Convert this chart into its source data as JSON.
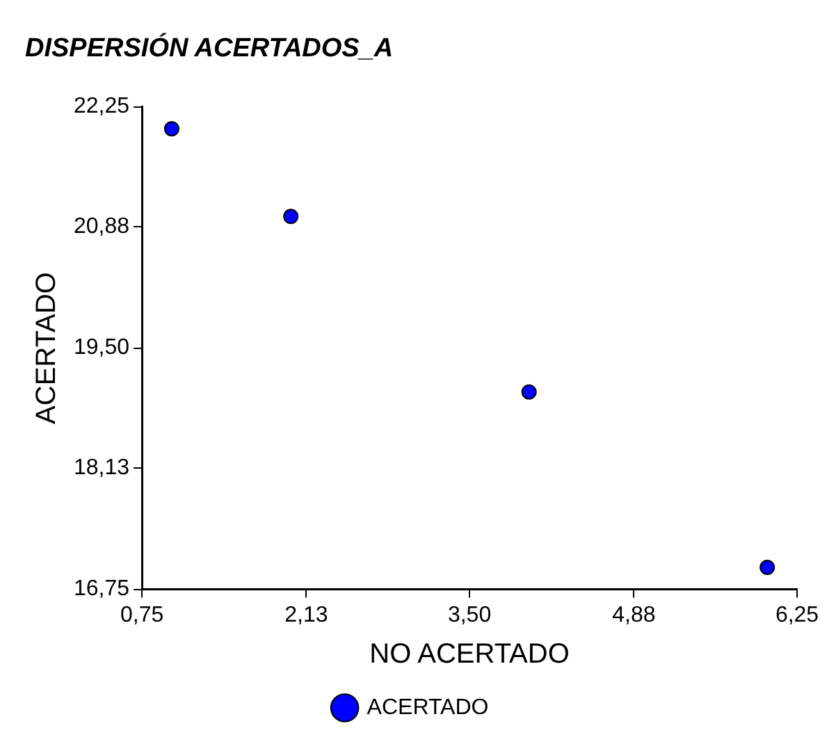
{
  "chart_data": {
    "type": "scatter",
    "title": "DISPERSIÓN ACERTADOS_A",
    "xlabel": "NO ACERTADO",
    "ylabel": "ACERTADO",
    "x": [
      1,
      2,
      4,
      6
    ],
    "series": [
      {
        "name": "ACERTADO",
        "color": "#0000ff",
        "values": [
          22,
          21,
          19,
          17
        ]
      }
    ],
    "xlim": [
      0.75,
      6.25
    ],
    "xticks": [
      {
        "value": 0.75,
        "label": "0,75"
      },
      {
        "value": 2.13,
        "label": "2,13"
      },
      {
        "value": 3.5,
        "label": "3,50"
      },
      {
        "value": 4.88,
        "label": "4,88"
      },
      {
        "value": 6.25,
        "label": "6,25"
      }
    ],
    "ylim": [
      16.75,
      22.25
    ],
    "yticks": [
      {
        "value": 16.75,
        "label": "16,75"
      },
      {
        "value": 18.13,
        "label": "18,13"
      },
      {
        "value": 19.5,
        "label": "19,50"
      },
      {
        "value": 20.88,
        "label": "20,88"
      },
      {
        "value": 22.25,
        "label": "22,25"
      }
    ],
    "grid": false,
    "legend": "bottom",
    "marker": "circle"
  }
}
